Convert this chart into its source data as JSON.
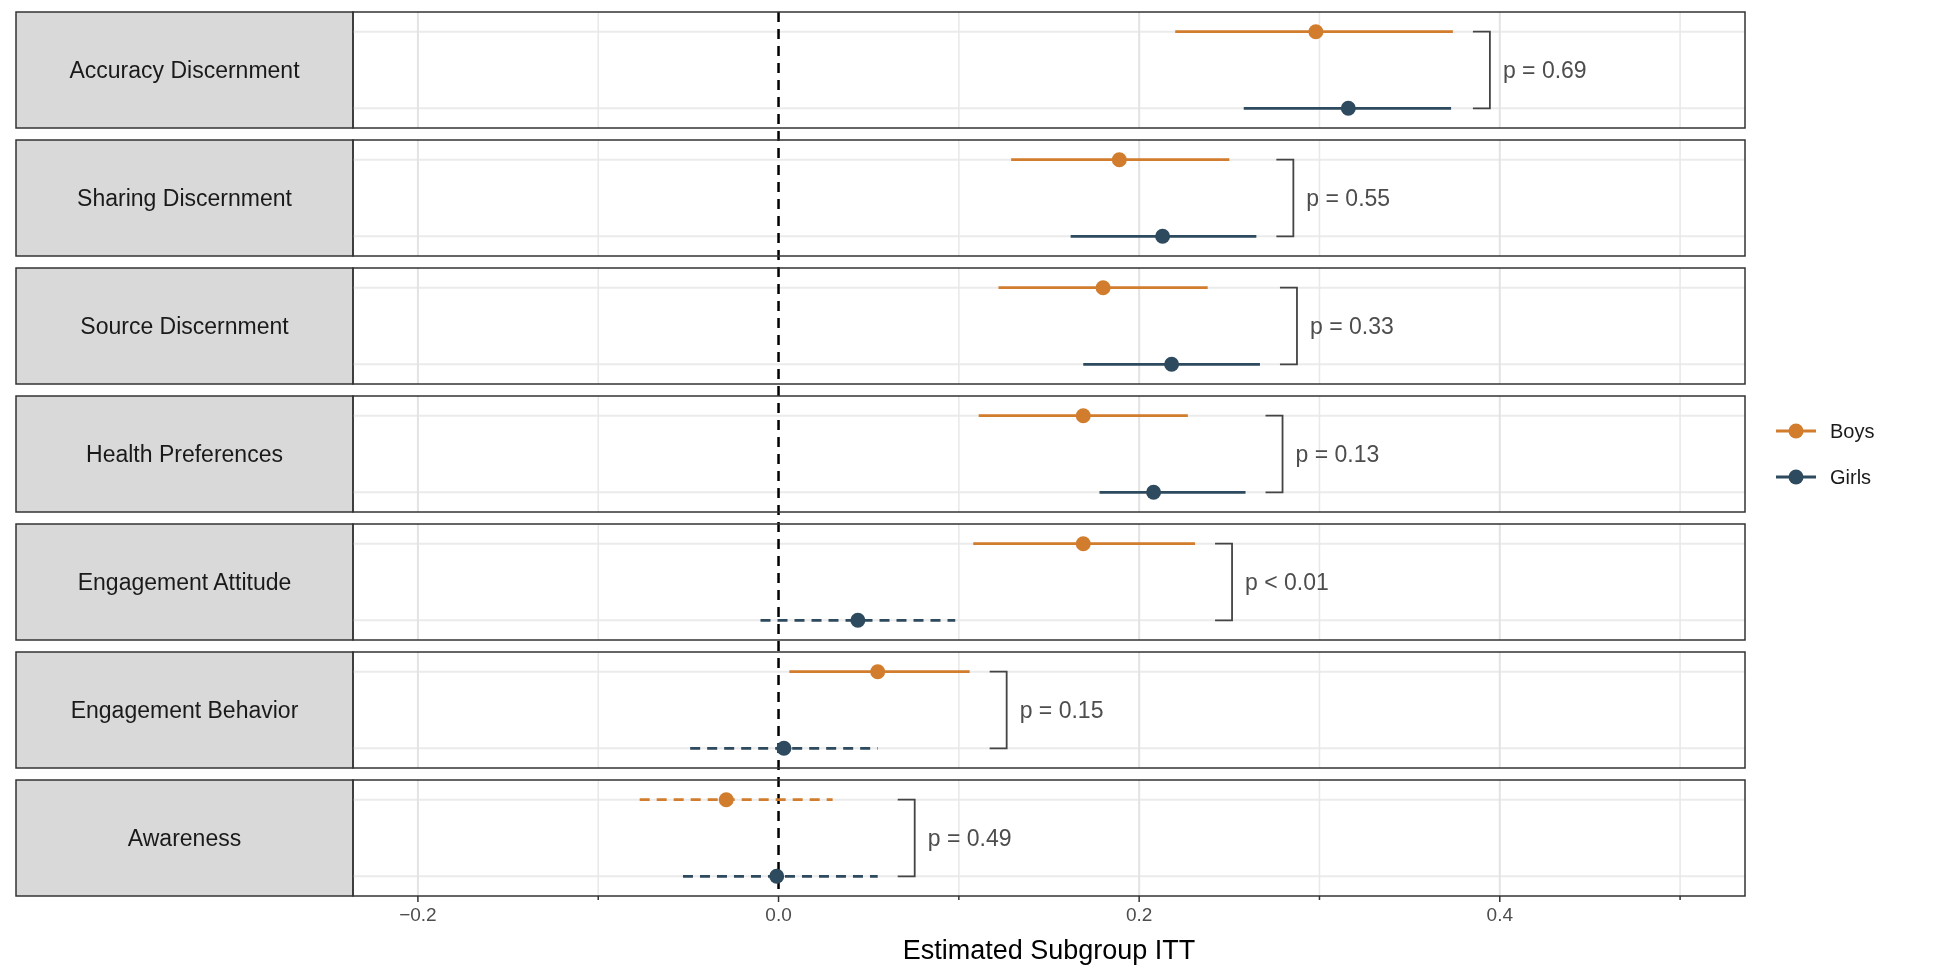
{
  "chart_data": {
    "type": "scatter",
    "orientation": "horizontal",
    "categories": [
      "Accuracy Discernment",
      "Sharing Discernment",
      "Source Discernment",
      "Health Preferences",
      "Engagement Attitude",
      "Engagement Behavior",
      "Awareness"
    ],
    "marker": "circle",
    "legend": "right",
    "xlabel": "Estimated Subgroup ITT",
    "xlim": [
      -0.236,
      0.536
    ],
    "xticks": [
      {
        "value": -0.2,
        "label": "−0.2"
      },
      {
        "value": -0.1,
        "label": null
      },
      {
        "value": 0,
        "label": "0.0"
      },
      {
        "value": 0.1,
        "label": null
      },
      {
        "value": 0.2,
        "label": "0.2"
      },
      {
        "value": 0.3,
        "label": null
      },
      {
        "value": 0.4,
        "label": "0.4"
      },
      {
        "value": 0.5,
        "label": null
      }
    ],
    "grid": true,
    "ref_lines": [
      {
        "axis": "x",
        "value": 0,
        "color": "#000000",
        "line_style": "dashed"
      }
    ],
    "annotations": [
      "p = 0.69",
      "p = 0.55",
      "p = 0.33",
      "p = 0.13",
      "p < 0.01",
      "p = 0.15",
      "p = 0.49"
    ],
    "series": [
      {
        "name": "Boys",
        "color": "#d27d2d",
        "line_style": "solid",
        "values": [
          0.298,
          0.189,
          0.18,
          0.169,
          0.169,
          0.055,
          null
        ],
        "errors": [
          [
            0.22,
            0.374
          ],
          [
            0.129,
            0.25
          ],
          [
            0.122,
            0.238
          ],
          [
            0.111,
            0.227
          ],
          [
            0.108,
            0.231
          ],
          [
            0.006,
            0.106
          ],
          null
        ]
      },
      {
        "name": "Girls",
        "color": "#2e4a5e",
        "line_style": "solid",
        "values": [
          0.316,
          0.213,
          0.218,
          0.208,
          null,
          null,
          null
        ],
        "errors": [
          [
            0.258,
            0.373
          ],
          [
            0.162,
            0.265
          ],
          [
            0.169,
            0.267
          ],
          [
            0.178,
            0.259
          ],
          null,
          null,
          null
        ]
      },
      {
        "color": "#d27d2d",
        "line_style": "dashed",
        "values": [
          null,
          null,
          null,
          null,
          null,
          null,
          -0.029
        ],
        "errors": [
          null,
          null,
          null,
          null,
          null,
          null,
          [
            -0.077,
            0.03
          ]
        ]
      },
      {
        "color": "#2e4a5e",
        "line_style": "dashed",
        "values": [
          null,
          null,
          null,
          null,
          0.044,
          0.003,
          -0.001
        ],
        "errors": [
          null,
          null,
          null,
          null,
          [
            -0.01,
            0.098
          ],
          [
            -0.049,
            0.055
          ],
          [
            -0.053,
            0.055
          ]
        ]
      }
    ]
  }
}
